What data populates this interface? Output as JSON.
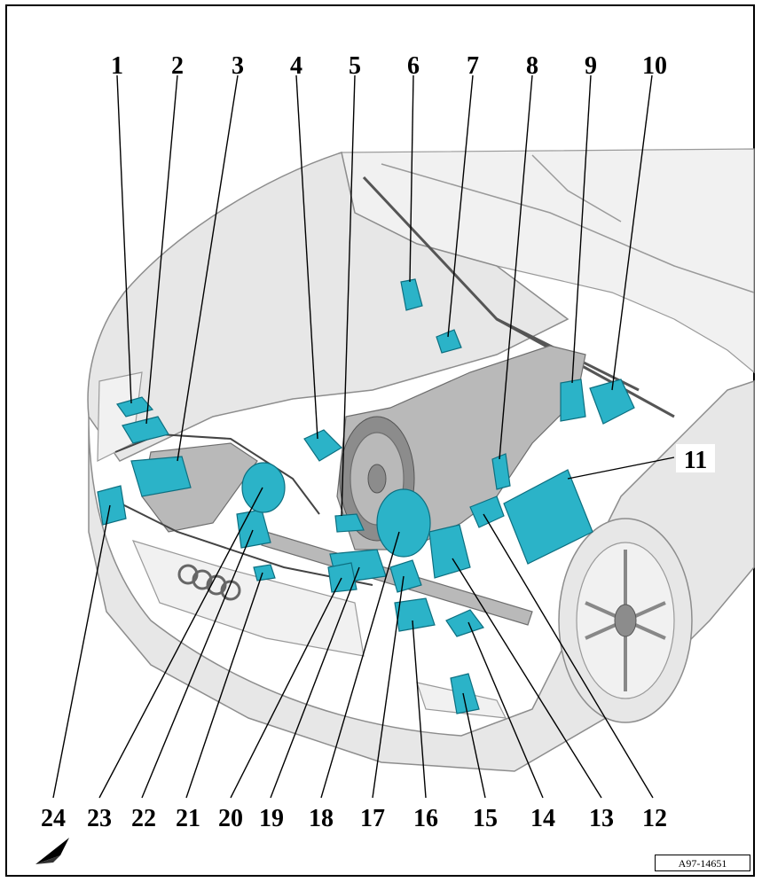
{
  "figure": {
    "reference_code": "A97-14651",
    "top_callouts": [
      "1",
      "2",
      "3",
      "4",
      "5",
      "6",
      "7",
      "8",
      "9",
      "10"
    ],
    "side_callouts": [
      "11"
    ],
    "bottom_callouts": [
      "24",
      "23",
      "22",
      "21",
      "20",
      "19",
      "18",
      "17",
      "16",
      "15",
      "14",
      "13",
      "12"
    ],
    "orientation_icon": "direction-arrow-icon",
    "colors": {
      "component": "#2bb3c8",
      "component_outline": "#0d6f80",
      "vehicle": "#e7e7e7",
      "callout_text": "#000000"
    }
  }
}
